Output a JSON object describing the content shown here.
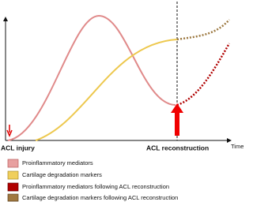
{
  "labels": {
    "injury": "ACL injury",
    "reconstruction": "ACL reconstruction",
    "x_axis": "Time"
  },
  "legend": [
    "Proinflammatory mediators",
    "Cartilage degradation markers",
    "Proinflammatory mediators following ACL reconstruction",
    "Cartilage degradation markers following ACL reconstruction"
  ]
}
